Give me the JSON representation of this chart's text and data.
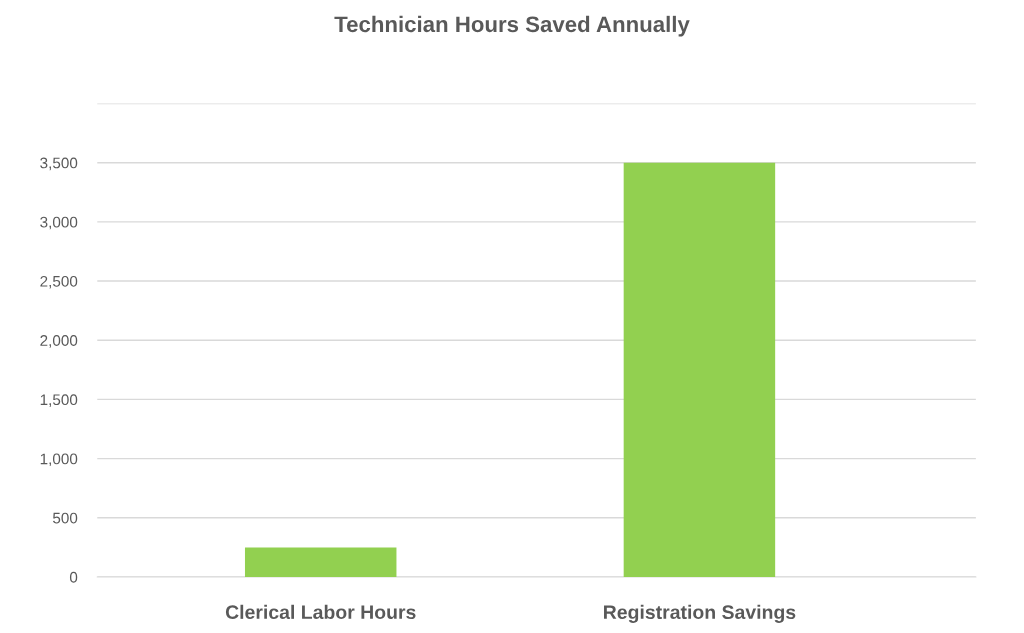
{
  "chart_data": {
    "type": "bar",
    "title": "Technician Hours Saved Annually",
    "categories": [
      "Clerical Labor Hours",
      "Registration Savings"
    ],
    "values": [
      250,
      3500
    ],
    "color": "#92d050",
    "ylim": [
      0,
      4000
    ],
    "yticks": [
      0,
      500,
      {
        "value": 1000,
        "label": "1,000"
      },
      {
        "value": 1500,
        "label": "1,500"
      },
      {
        "value": 2000,
        "label": "2,000"
      },
      {
        "value": 2500,
        "label": "2,500"
      },
      {
        "value": 3000,
        "label": "3,000"
      },
      {
        "value": 3500,
        "label": "3,500"
      },
      {
        "value": 4000,
        "label": null
      }
    ],
    "grid": "y",
    "legend": false
  }
}
